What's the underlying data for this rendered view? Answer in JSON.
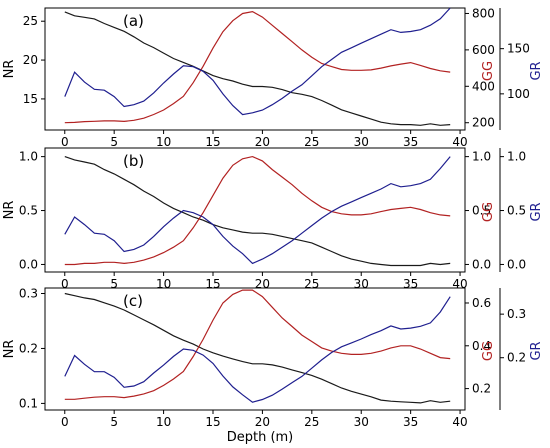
{
  "colors": {
    "nr": "#1a1a1a",
    "gg": "#b22222",
    "gr": "#1f1f8f",
    "axis": "#000000"
  },
  "xlabel": "Depth (m)",
  "chart_data": [
    {
      "type": "line",
      "panel_label": "(a)",
      "x": [
        0,
        1,
        2,
        3,
        4,
        5,
        6,
        7,
        8,
        9,
        10,
        11,
        12,
        13,
        14,
        15,
        16,
        17,
        18,
        19,
        20,
        21,
        22,
        23,
        24,
        25,
        26,
        27,
        28,
        29,
        30,
        31,
        32,
        33,
        34,
        35,
        36,
        37,
        38,
        39
      ],
      "xlim": [
        -2,
        40.5
      ],
      "xticks": [
        0,
        5,
        10,
        15,
        20,
        25,
        30,
        35,
        40
      ],
      "series": [
        {
          "name": "NR",
          "axis": "left",
          "ylabel": "NR",
          "ylim": [
            11,
            26.7
          ],
          "yticks": [
            15,
            20,
            25
          ],
          "values": [
            26.2,
            25.7,
            25.5,
            25.3,
            24.7,
            24.2,
            23.7,
            23.0,
            22.2,
            21.6,
            20.9,
            20.2,
            19.7,
            19.2,
            18.6,
            18.0,
            17.6,
            17.3,
            16.9,
            16.6,
            16.6,
            16.5,
            16.2,
            15.8,
            15.6,
            15.3,
            14.8,
            14.2,
            13.6,
            13.2,
            12.8,
            12.4,
            12.0,
            11.8,
            11.7,
            11.7,
            11.6,
            11.8,
            11.6,
            11.7
          ]
        },
        {
          "name": "GG",
          "axis": "right1",
          "ylabel": "GG",
          "ylim": [
            160,
            830
          ],
          "yticks": [
            200,
            400,
            600,
            800
          ],
          "values": [
            200,
            202,
            206,
            208,
            210,
            210,
            207,
            213,
            225,
            245,
            270,
            305,
            345,
            420,
            510,
            610,
            700,
            760,
            800,
            810,
            780,
            735,
            690,
            645,
            600,
            560,
            525,
            508,
            492,
            488,
            488,
            490,
            500,
            512,
            522,
            530,
            515,
            498,
            485,
            478
          ]
        },
        {
          "name": "GR",
          "axis": "right2",
          "ylabel": "GR",
          "ylim": [
            60,
            195
          ],
          "yticks": [
            100,
            150
          ],
          "values": [
            97,
            124,
            113,
            105,
            104,
            97,
            86,
            88,
            92,
            101,
            112,
            122,
            131,
            130,
            125,
            115,
            100,
            87,
            77,
            79,
            82,
            88,
            95,
            103,
            110,
            120,
            130,
            138,
            146,
            151,
            156,
            161,
            166,
            171,
            168,
            169,
            171,
            176,
            183,
            195
          ]
        }
      ]
    },
    {
      "type": "line",
      "panel_label": "(b)",
      "x": [
        0,
        1,
        2,
        3,
        4,
        5,
        6,
        7,
        8,
        9,
        10,
        11,
        12,
        13,
        14,
        15,
        16,
        17,
        18,
        19,
        20,
        21,
        22,
        23,
        24,
        25,
        26,
        27,
        28,
        29,
        30,
        31,
        32,
        33,
        34,
        35,
        36,
        37,
        38,
        39
      ],
      "xlim": [
        -2,
        40.5
      ],
      "xticks": [
        0,
        5,
        10,
        15,
        20,
        25,
        30,
        35,
        40
      ],
      "series": [
        {
          "name": "NR",
          "axis": "left",
          "ylabel": "NR",
          "ylim": [
            -0.07,
            1.08
          ],
          "yticks": [
            0.0,
            0.5,
            1.0
          ],
          "ytick_labels": [
            "0.0",
            "0.5",
            "1.0"
          ],
          "values": [
            1.0,
            0.97,
            0.95,
            0.93,
            0.88,
            0.84,
            0.79,
            0.74,
            0.68,
            0.63,
            0.57,
            0.52,
            0.48,
            0.44,
            0.41,
            0.37,
            0.34,
            0.32,
            0.3,
            0.29,
            0.29,
            0.28,
            0.26,
            0.24,
            0.22,
            0.2,
            0.16,
            0.12,
            0.08,
            0.05,
            0.03,
            0.01,
            0.0,
            -0.01,
            -0.01,
            -0.01,
            -0.01,
            0.01,
            0.0,
            0.01
          ]
        },
        {
          "name": "GG",
          "axis": "right1",
          "ylabel": "GG",
          "ylim": [
            -0.07,
            1.08
          ],
          "yticks": [
            0.0,
            0.5,
            1.0
          ],
          "ytick_labels": [
            "0.0",
            "0.5",
            "1.0"
          ],
          "values": [
            0.0,
            0.0,
            0.01,
            0.01,
            0.02,
            0.02,
            0.01,
            0.02,
            0.04,
            0.07,
            0.11,
            0.16,
            0.22,
            0.34,
            0.48,
            0.64,
            0.8,
            0.92,
            0.98,
            1.0,
            0.96,
            0.88,
            0.81,
            0.74,
            0.66,
            0.59,
            0.53,
            0.49,
            0.47,
            0.46,
            0.46,
            0.47,
            0.49,
            0.51,
            0.52,
            0.53,
            0.51,
            0.48,
            0.46,
            0.45
          ]
        },
        {
          "name": "GR",
          "axis": "right2",
          "ylabel": "GR",
          "ylim": [
            -0.07,
            1.08
          ],
          "yticks": [
            0.0,
            0.5,
            1.0
          ],
          "ytick_labels": [
            "0.0",
            "0.5",
            "1.0"
          ],
          "values": [
            0.28,
            0.44,
            0.37,
            0.29,
            0.28,
            0.22,
            0.12,
            0.14,
            0.18,
            0.26,
            0.35,
            0.43,
            0.5,
            0.48,
            0.44,
            0.37,
            0.26,
            0.17,
            0.1,
            0.01,
            0.05,
            0.1,
            0.16,
            0.22,
            0.29,
            0.36,
            0.43,
            0.49,
            0.54,
            0.58,
            0.62,
            0.66,
            0.7,
            0.75,
            0.72,
            0.73,
            0.75,
            0.79,
            0.89,
            1.0
          ]
        }
      ]
    },
    {
      "type": "line",
      "panel_label": "(c)",
      "x": [
        0,
        1,
        2,
        3,
        4,
        5,
        6,
        7,
        8,
        9,
        10,
        11,
        12,
        13,
        14,
        15,
        16,
        17,
        18,
        19,
        20,
        21,
        22,
        23,
        24,
        25,
        26,
        27,
        28,
        29,
        30,
        31,
        32,
        33,
        34,
        35,
        36,
        37,
        38,
        39
      ],
      "xlim": [
        -2,
        40.5
      ],
      "xticks": [
        0,
        5,
        10,
        15,
        20,
        25,
        30,
        35,
        40
      ],
      "series": [
        {
          "name": "NR",
          "axis": "left",
          "ylabel": "NR",
          "ylim": [
            0.088,
            0.31
          ],
          "yticks": [
            0.1,
            0.2,
            0.3
          ],
          "ytick_labels": [
            "0.1",
            "0.2",
            "0.3"
          ],
          "values": [
            0.3,
            0.296,
            0.292,
            0.289,
            0.283,
            0.277,
            0.27,
            0.261,
            0.252,
            0.243,
            0.233,
            0.223,
            0.215,
            0.208,
            0.199,
            0.192,
            0.186,
            0.181,
            0.176,
            0.172,
            0.172,
            0.17,
            0.166,
            0.161,
            0.156,
            0.151,
            0.144,
            0.136,
            0.128,
            0.122,
            0.117,
            0.112,
            0.106,
            0.104,
            0.103,
            0.102,
            0.101,
            0.105,
            0.102,
            0.104
          ]
        },
        {
          "name": "GG",
          "axis": "right1",
          "ylabel": "GG",
          "ylim": [
            0.1,
            0.67
          ],
          "yticks": [
            0.2,
            0.4,
            0.6
          ],
          "ytick_labels": [
            "0.2",
            "0.4",
            "0.6"
          ],
          "values": [
            0.15,
            0.15,
            0.155,
            0.16,
            0.162,
            0.162,
            0.158,
            0.165,
            0.175,
            0.19,
            0.215,
            0.245,
            0.28,
            0.35,
            0.43,
            0.52,
            0.6,
            0.64,
            0.66,
            0.66,
            0.63,
            0.58,
            0.53,
            0.49,
            0.45,
            0.42,
            0.39,
            0.375,
            0.365,
            0.36,
            0.36,
            0.365,
            0.375,
            0.39,
            0.4,
            0.4,
            0.385,
            0.365,
            0.345,
            0.34
          ]
        },
        {
          "name": "GR",
          "axis": "right2",
          "ylabel": "GR",
          "ylim": [
            0.08,
            0.36
          ],
          "yticks": [
            0.2,
            0.3
          ],
          "ytick_labels": [
            "0.2",
            "0.3"
          ],
          "values": [
            0.157,
            0.205,
            0.185,
            0.168,
            0.168,
            0.155,
            0.132,
            0.135,
            0.145,
            0.165,
            0.183,
            0.203,
            0.22,
            0.217,
            0.206,
            0.187,
            0.158,
            0.133,
            0.115,
            0.098,
            0.104,
            0.114,
            0.128,
            0.143,
            0.157,
            0.176,
            0.195,
            0.212,
            0.225,
            0.234,
            0.243,
            0.253,
            0.262,
            0.273,
            0.266,
            0.268,
            0.272,
            0.28,
            0.305,
            0.34
          ]
        }
      ]
    }
  ]
}
